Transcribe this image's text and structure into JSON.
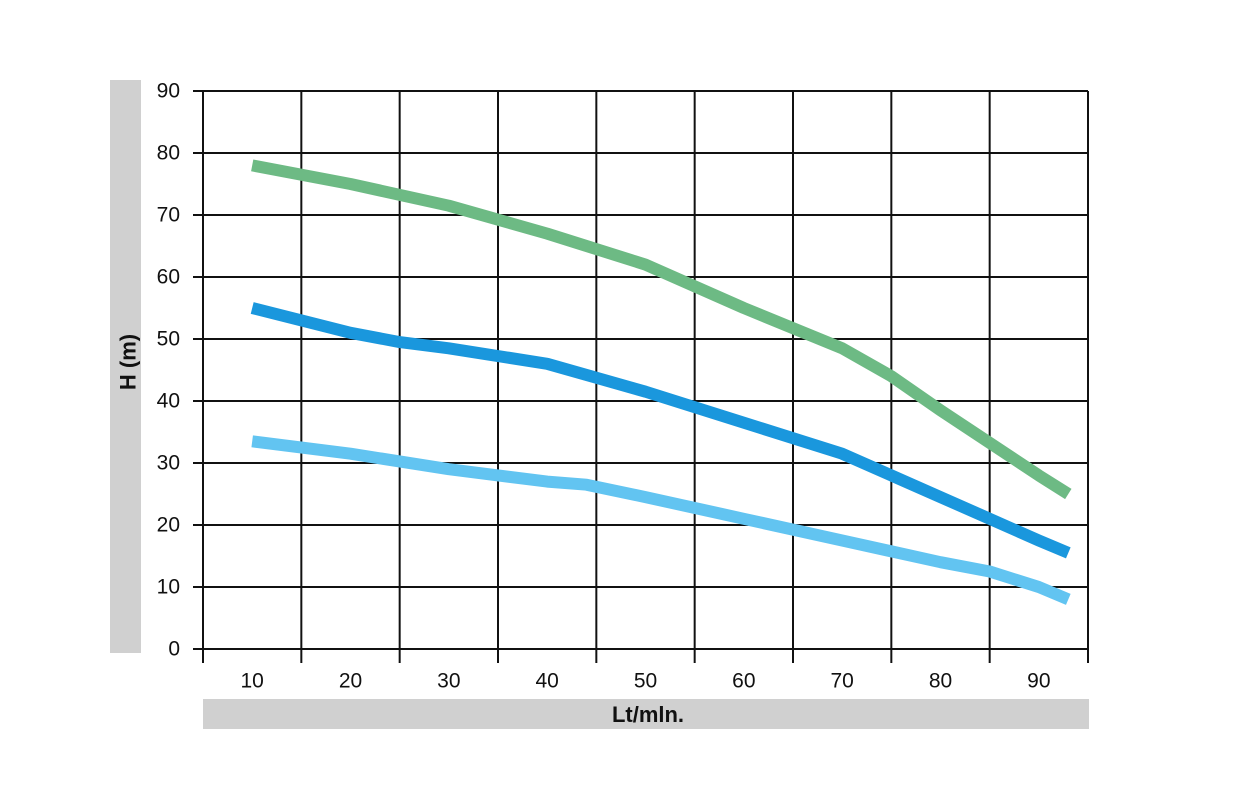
{
  "chart_data": {
    "type": "line",
    "title": "",
    "xlabel": "Lt/mln.",
    "ylabel": "H (m)",
    "x_tick_labels": [
      "10",
      "20",
      "30",
      "40",
      "50",
      "60",
      "70",
      "80",
      "90"
    ],
    "y_ticks": [
      0,
      10,
      20,
      30,
      40,
      50,
      60,
      70,
      80,
      90
    ],
    "ylim": [
      0,
      90
    ],
    "grid": true,
    "legend": "none",
    "series": [
      {
        "color": "#6DBA84",
        "points": [
          [
            10,
            78
          ],
          [
            20,
            75
          ],
          [
            30,
            71.5
          ],
          [
            40,
            67
          ],
          [
            50,
            62
          ],
          [
            60,
            55
          ],
          [
            70,
            48.5
          ],
          [
            75,
            44
          ],
          [
            80,
            38.5
          ],
          [
            90,
            28
          ],
          [
            93,
            25
          ]
        ]
      },
      {
        "color": "#1A97DD",
        "points": [
          [
            10,
            55
          ],
          [
            20,
            51
          ],
          [
            25,
            49.5
          ],
          [
            30,
            48.5
          ],
          [
            40,
            46
          ],
          [
            50,
            41.5
          ],
          [
            60,
            36.5
          ],
          [
            70,
            31.5
          ],
          [
            75,
            28
          ],
          [
            80,
            24.5
          ],
          [
            90,
            17.5
          ],
          [
            93,
            15.5
          ]
        ]
      },
      {
        "color": "#62C4F1",
        "points": [
          [
            10,
            33.5
          ],
          [
            20,
            31.5
          ],
          [
            30,
            29
          ],
          [
            40,
            27
          ],
          [
            44,
            26.5
          ],
          [
            50,
            24.5
          ],
          [
            60,
            21
          ],
          [
            70,
            17.5
          ],
          [
            80,
            14
          ],
          [
            85,
            12.5
          ],
          [
            90,
            10
          ],
          [
            93,
            8
          ]
        ]
      }
    ]
  }
}
